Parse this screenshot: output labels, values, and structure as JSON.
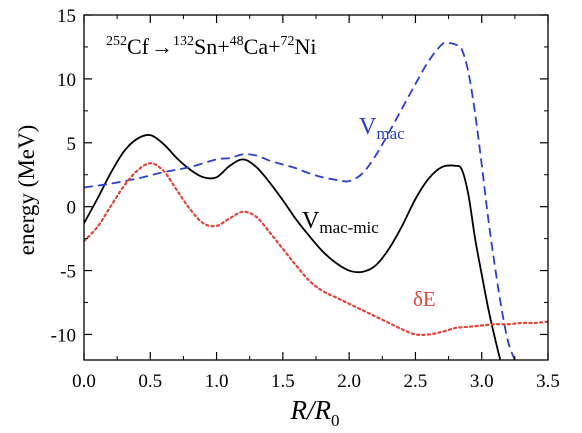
{
  "chart_data": {
    "type": "line",
    "title": "",
    "xlabel_main": "R/R",
    "xlabel_sub": "0",
    "ylabel": "energy (MeV)",
    "xlim": [
      0.0,
      3.5
    ],
    "ylim": [
      -12,
      15
    ],
    "x_ticks": [
      0.0,
      0.5,
      1.0,
      1.5,
      2.0,
      2.5,
      3.0,
      3.5
    ],
    "x_tick_labels": [
      "0.0",
      "0.5",
      "1.0",
      "1.5",
      "2.0",
      "2.5",
      "3.0",
      "3.5"
    ],
    "y_ticks": [
      -10,
      -5,
      0,
      5,
      10,
      15
    ],
    "y_tick_labels": [
      "-10",
      "-5",
      "0",
      "5",
      "10",
      "15"
    ],
    "grid": false,
    "reaction": {
      "m1": "252",
      "s1": "Cf",
      "arrow": "→",
      "m2": "132",
      "s2": "Sn",
      "plus1": "+",
      "m3": "48",
      "s3": "Ca",
      "plus2": "+",
      "m4": "72",
      "s4": "Ni"
    },
    "series": [
      {
        "name": "Vmac-mic",
        "label_main": "V",
        "label_sub": "mac-mic",
        "color": "#000000",
        "style": "solid",
        "x": [
          0.0,
          0.1,
          0.2,
          0.3,
          0.4,
          0.5,
          0.6,
          0.7,
          0.8,
          0.9,
          1.0,
          1.1,
          1.2,
          1.3,
          1.4,
          1.5,
          1.6,
          1.7,
          1.8,
          1.9,
          2.0,
          2.1,
          2.2,
          2.3,
          2.4,
          2.5,
          2.6,
          2.7,
          2.8,
          2.85,
          2.9,
          2.95,
          3.0,
          3.05,
          3.1,
          3.14
        ],
        "y": [
          -1.3,
          0.6,
          2.6,
          4.3,
          5.3,
          5.6,
          4.9,
          3.8,
          2.9,
          2.3,
          2.3,
          3.2,
          3.7,
          3.1,
          1.9,
          0.5,
          -1.0,
          -2.3,
          -3.5,
          -4.4,
          -5.0,
          -5.1,
          -4.6,
          -3.3,
          -1.5,
          0.6,
          2.2,
          3.1,
          3.2,
          2.9,
          0.9,
          -2.5,
          -5.3,
          -8.0,
          -10.3,
          -12.0
        ]
      },
      {
        "name": "Vmac",
        "label_main": "V",
        "label_sub": "mac",
        "color": "#2a3fcf",
        "style": "dashed",
        "x": [
          0.0,
          0.2,
          0.4,
          0.6,
          0.8,
          1.0,
          1.1,
          1.2,
          1.3,
          1.4,
          1.5,
          1.6,
          1.7,
          1.8,
          1.9,
          2.0,
          2.1,
          2.2,
          2.3,
          2.4,
          2.5,
          2.6,
          2.7,
          2.75,
          2.8,
          2.85,
          2.9,
          2.95,
          3.0,
          3.05,
          3.1,
          3.15,
          3.2,
          3.25
        ],
        "y": [
          1.5,
          1.8,
          2.2,
          2.7,
          3.1,
          3.7,
          3.8,
          4.1,
          4.0,
          3.6,
          3.3,
          3.0,
          2.6,
          2.3,
          2.1,
          2.0,
          2.6,
          4.0,
          5.8,
          7.7,
          9.6,
          11.4,
          12.7,
          12.8,
          12.7,
          12.3,
          10.5,
          7.3,
          3.3,
          -1.0,
          -4.7,
          -8.0,
          -10.6,
          -12.0
        ]
      },
      {
        "name": "δE",
        "label_main": "δE",
        "label_sub": "",
        "color": "#e0463c",
        "style": "dotted",
        "x": [
          0.0,
          0.1,
          0.2,
          0.3,
          0.4,
          0.5,
          0.6,
          0.7,
          0.8,
          0.9,
          1.0,
          1.1,
          1.2,
          1.3,
          1.4,
          1.5,
          1.6,
          1.7,
          1.8,
          1.9,
          2.0,
          2.1,
          2.2,
          2.3,
          2.4,
          2.5,
          2.6,
          2.7,
          2.8,
          2.9,
          3.0,
          3.1,
          3.2,
          3.3,
          3.4,
          3.5
        ],
        "y": [
          -2.7,
          -1.6,
          0.0,
          1.6,
          2.8,
          3.4,
          2.8,
          1.3,
          -0.2,
          -1.3,
          -1.5,
          -0.9,
          -0.4,
          -0.8,
          -2.0,
          -3.3,
          -4.6,
          -5.8,
          -6.6,
          -7.1,
          -7.6,
          -8.1,
          -8.6,
          -9.1,
          -9.6,
          -10.0,
          -10.0,
          -9.8,
          -9.5,
          -9.4,
          -9.3,
          -9.2,
          -9.2,
          -9.1,
          -9.1,
          -9.0
        ]
      }
    ]
  }
}
